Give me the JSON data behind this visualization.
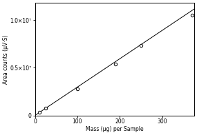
{
  "x_data": [
    10,
    25,
    100,
    190,
    250,
    370
  ],
  "y_data": [
    300000.0,
    800000.0,
    2800000.0,
    5400000.0,
    7300000.0,
    10500000.0
  ],
  "fit_x": [
    0,
    375
  ],
  "fit_y": [
    0,
    11150000.0
  ],
  "xlabel": "Mass (μg) per Sample",
  "ylabel": "Area counts (μV·S)",
  "yticks": [
    0,
    5000000,
    10000000
  ],
  "ytick_labels": [
    "0",
    "0.5×10⁷",
    "1.0×10⁷"
  ],
  "xticks": [
    0,
    100,
    200,
    300
  ],
  "xlim": [
    0,
    375
  ],
  "ylim": [
    0,
    11800000.0
  ],
  "marker_color": "white",
  "marker_edge_color": "black",
  "line_color": "black",
  "bg_color": "white"
}
